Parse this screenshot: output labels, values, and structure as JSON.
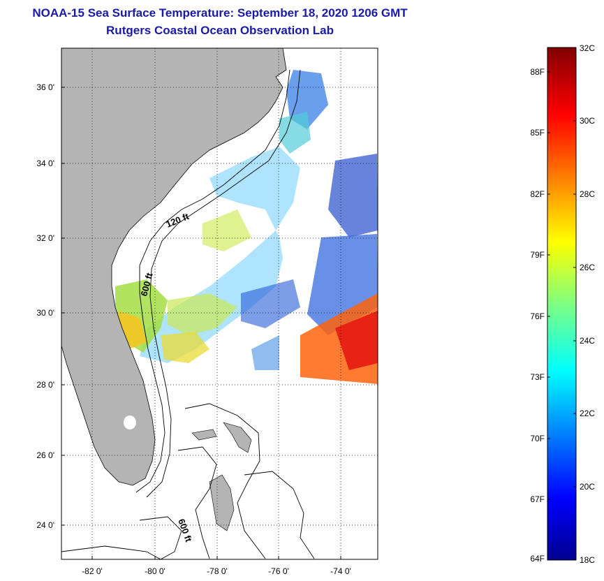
{
  "header": {
    "title": "NOAA-15 Sea Surface Temperature:  September 18, 2020 1206 GMT",
    "subtitle": "Rutgers Coastal Ocean Observation Lab"
  },
  "map": {
    "lat_labels": [
      "36 0'",
      "34 0'",
      "32 0'",
      "30 0'",
      "28 0'",
      "26 0'",
      "24 0'"
    ],
    "lon_labels": [
      "-82 0'",
      "-80 0'",
      "-78 0'",
      "-76 0'",
      "-74 0'"
    ],
    "contour_labels": [
      "120 ft",
      "600 ft",
      "600 ft"
    ],
    "land_color": "#b4b4b4",
    "no_data_color": "#ffffff"
  },
  "colorbar": {
    "min_c": 18,
    "max_c": 32,
    "fahrenheit_labels": [
      "88F",
      "85F",
      "82F",
      "79F",
      "76F",
      "73F",
      "70F",
      "67F",
      "64F"
    ],
    "celsius_labels": [
      "32C",
      "30C",
      "28C",
      "26C",
      "24C",
      "22C",
      "20C",
      "18C"
    ],
    "colormap": "jet"
  }
}
